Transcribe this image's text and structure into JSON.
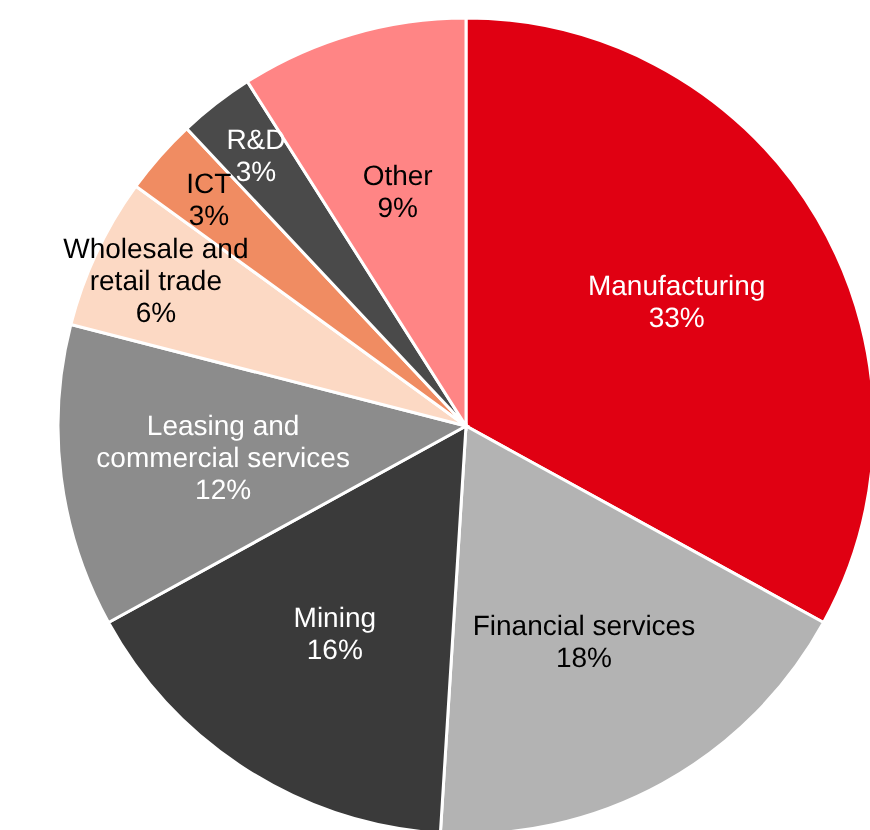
{
  "chart_data": {
    "type": "pie",
    "categories": [
      "Manufacturing",
      "Financial services",
      "Mining",
      "Leasing and commercial services",
      "Wholesale and retail trade",
      "ICT",
      "R&D",
      "Other"
    ],
    "values": [
      33,
      18,
      16,
      12,
      6,
      3,
      3,
      9
    ],
    "value_labels": [
      "33%",
      "18%",
      "16%",
      "12%",
      "6%",
      "3%",
      "3%",
      "9%"
    ],
    "colors": [
      "#e00012",
      "#b3b3b3",
      "#3a3a3a",
      "#8c8c8c",
      "#fcd9c4",
      "#f08c62",
      "#4a4a4a",
      "#ff8585"
    ],
    "legend": false
  }
}
